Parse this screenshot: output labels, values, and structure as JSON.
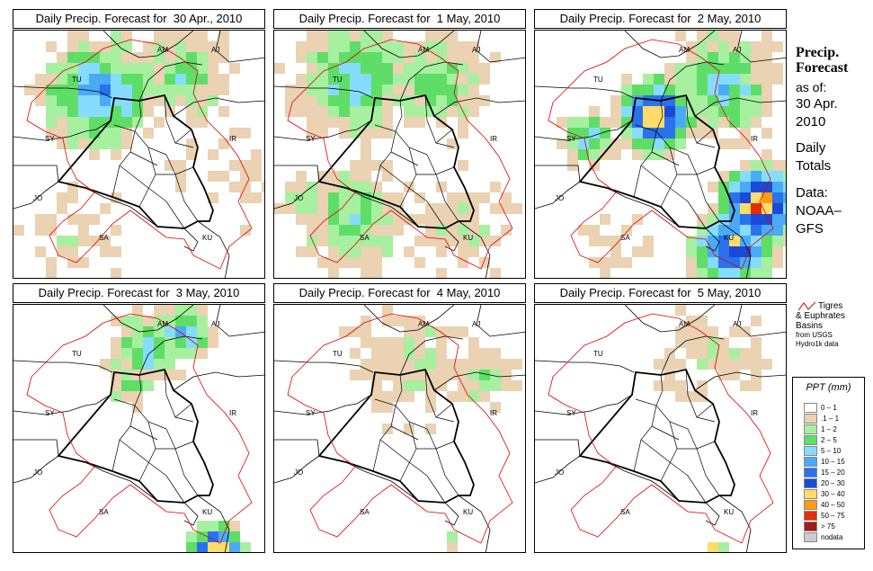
{
  "panels": [
    {
      "title": "Daily Precip. Forecast for  30 Apr., 2010"
    },
    {
      "title": "Daily Precip. Forecast for  1 May, 2010"
    },
    {
      "title": "Daily Precip. Forecast for  2 May, 2010"
    },
    {
      "title": "Daily Precip. Forecast for  3 May, 2010"
    },
    {
      "title": "Daily Precip. Forecast for  4 May, 2010"
    },
    {
      "title": "Daily Precip. Forecast for  5 May, 2010"
    }
  ],
  "country_labels": [
    "AM",
    "AJ",
    "TU",
    "SY",
    "IR",
    "JO",
    "SA",
    "KU"
  ],
  "sidebar": {
    "heading1": "Precip.",
    "heading2": "Forecast",
    "asof": "as of:",
    "date1": "30 Apr.",
    "date2": "2010",
    "daily1": "Daily",
    "daily2": "Totals",
    "data1": "Data:",
    "data2": "NOAA–",
    "data3": "GFS"
  },
  "basins": {
    "line1": "Tigres",
    "line2": "& Euphrates",
    "line3": "Basins",
    "line4": "from USGS",
    "line5": "Hydro1k data",
    "color": "#dd0000"
  },
  "legend": {
    "title": "PPT (mm)",
    "items": [
      {
        "label": "0 – 1",
        "color": "#ffffff"
      },
      {
        "label": ".1 – 1",
        "color": "#ead2b2"
      },
      {
        "label": "1 – 2",
        "color": "#a6f0a0"
      },
      {
        "label": "2 – 5",
        "color": "#5ede66"
      },
      {
        "label": "5 – 10",
        "color": "#86dcff"
      },
      {
        "label": "10 – 15",
        "color": "#4aaaf6"
      },
      {
        "label": "15 – 20",
        "color": "#2a72ec"
      },
      {
        "label": "20 – 30",
        "color": "#1a4ad6"
      },
      {
        "label": "30 – 40",
        "color": "#ffdb6a"
      },
      {
        "label": "40 – 50",
        "color": "#ff9c10"
      },
      {
        "label": "50 – 75",
        "color": "#e62c08"
      },
      {
        "label": "> 75",
        "color": "#a01c14"
      },
      {
        "label": "nodata",
        "color": "#cccccc"
      }
    ]
  }
}
